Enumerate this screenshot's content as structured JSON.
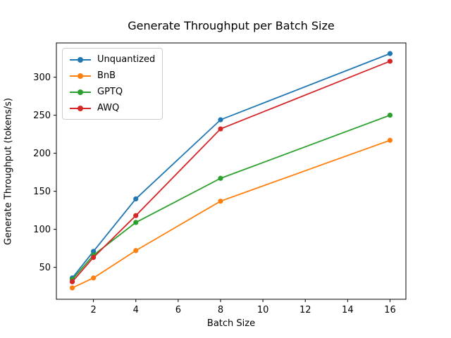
{
  "window": {
    "background": "#ffffff"
  },
  "chart_data": {
    "type": "line",
    "title": "Generate Throughput per Batch Size",
    "xlabel": "Batch Size",
    "ylabel": "Generate Throughput (tokens/s)",
    "x": [
      1,
      2,
      4,
      8,
      16
    ],
    "series": [
      {
        "name": "Unquantized",
        "color": "#1f77b4",
        "values": [
          36,
          71,
          140,
          244,
          331
        ]
      },
      {
        "name": "BnB",
        "color": "#ff7f0e",
        "values": [
          23,
          36,
          72,
          137,
          217
        ]
      },
      {
        "name": "GPTQ",
        "color": "#2ca02c",
        "values": [
          34,
          66,
          109,
          167,
          250
        ]
      },
      {
        "name": "AWQ",
        "color": "#d62728",
        "values": [
          31,
          63,
          118,
          232,
          321
        ]
      }
    ],
    "xticks": [
      2,
      4,
      6,
      8,
      10,
      12,
      14,
      16
    ],
    "yticks": [
      50,
      100,
      150,
      200,
      250,
      300
    ],
    "xlim": [
      0.25,
      16.75
    ],
    "ylim": [
      8,
      345
    ],
    "legend_position": "upper left",
    "grid": false,
    "marker": "o",
    "axis_color": "#000000"
  }
}
